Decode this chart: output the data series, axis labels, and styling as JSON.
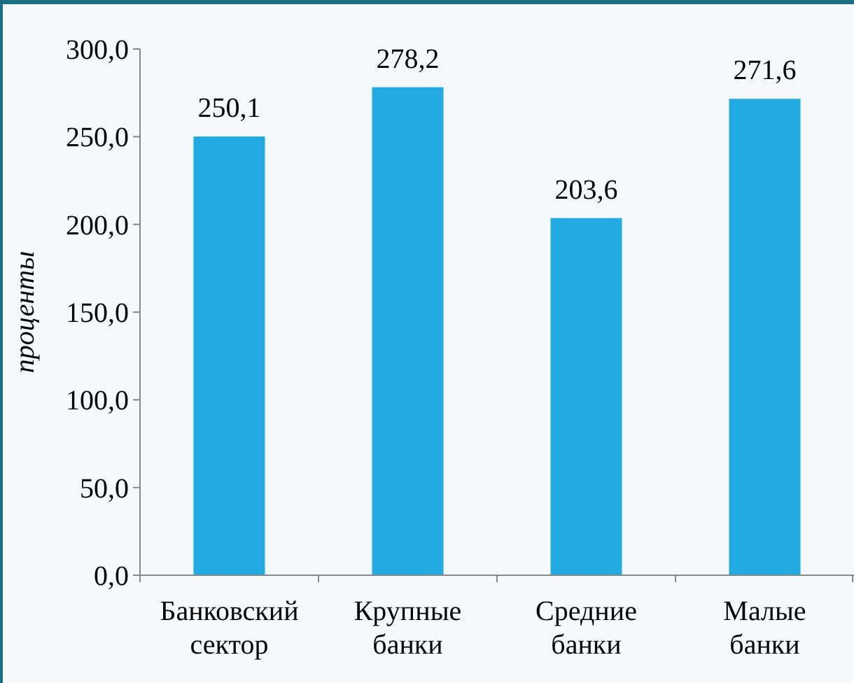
{
  "chart_data": {
    "type": "bar",
    "ylabel": "проценты",
    "categories": [
      "Банковский сектор",
      "Крупные банки",
      "Средние банки",
      "Малые банки"
    ],
    "values": [
      250.1,
      278.2,
      203.6,
      271.6
    ],
    "value_labels": [
      "250,1",
      "278,2",
      "203,6",
      "271,6"
    ],
    "color": "#21a9e1",
    "ylim": [
      0,
      300
    ],
    "yticks": [
      {
        "value": 0,
        "label": "0,0"
      },
      {
        "value": 50,
        "label": "50,0"
      },
      {
        "value": 100,
        "label": "100,0"
      },
      {
        "value": 150,
        "label": "150,0"
      },
      {
        "value": 200,
        "label": "200,0"
      },
      {
        "value": 250,
        "label": "250,0"
      },
      {
        "value": 300,
        "label": "300,0"
      }
    ],
    "grid": false
  }
}
